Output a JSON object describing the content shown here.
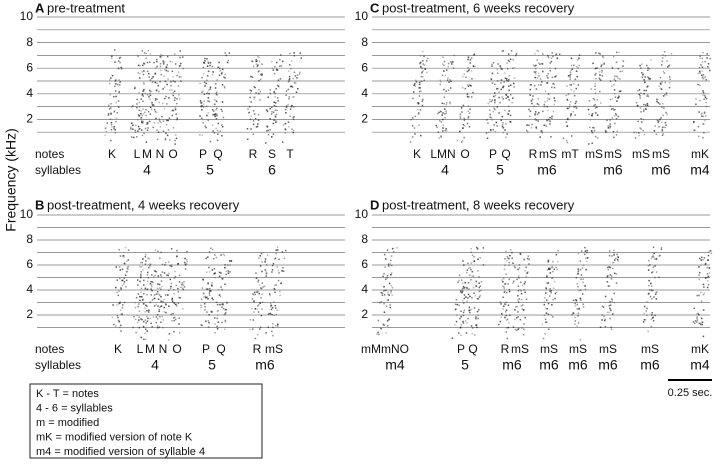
{
  "y_axis_label": "Frequency (kHz)",
  "panels": [
    {
      "letter": "A",
      "title": "pre-treatment",
      "yticks": [
        2,
        4,
        6,
        8,
        10
      ],
      "notes_label": "notes",
      "syllables_label": "syllables",
      "notes": [
        "K",
        "L",
        "M",
        "N",
        "O",
        "P",
        "Q",
        "R",
        "S",
        "T"
      ],
      "syllables": [
        "4",
        "5",
        "6"
      ]
    },
    {
      "letter": "B",
      "title": "post-treatment, 4 weeks recovery",
      "yticks": [
        2,
        4,
        6,
        8,
        10
      ],
      "notes_label": "notes",
      "syllables_label": "syllables",
      "notes": [
        "K",
        "L",
        "M",
        "N",
        "O",
        "P",
        "Q",
        "R",
        "mS"
      ],
      "syllables": [
        "4",
        "5",
        "m6"
      ]
    },
    {
      "letter": "C",
      "title": "post-treatment, 6 weeks recovery",
      "yticks": [
        2,
        4,
        6,
        8,
        10
      ],
      "notes": [
        "K",
        "LMN",
        "O",
        "P",
        "Q",
        "R",
        "mS",
        "mT",
        "mS",
        "mS",
        "mS",
        "mS",
        "mK"
      ],
      "syllables": [
        "4",
        "5",
        "m6",
        "m6",
        "m6",
        "m4"
      ]
    },
    {
      "letter": "D",
      "title": "post-treatment, 8 weeks recovery",
      "yticks": [
        2,
        4,
        6,
        8,
        10
      ],
      "notes": [
        "mMmNO",
        "P",
        "Q",
        "R",
        "mS",
        "mS",
        "mS",
        "mS",
        "mS",
        "mK"
      ],
      "syllables": [
        "m4",
        "5",
        "m6",
        "m6",
        "m6",
        "m6",
        "m6",
        "m4"
      ]
    }
  ],
  "key": [
    "K - T = notes",
    "4 - 6 = syllables",
    "m = modified",
    "mK = modified version of note K",
    "m4 = modified version of syllable 4"
  ],
  "scale_bar": "0.25 sec."
}
